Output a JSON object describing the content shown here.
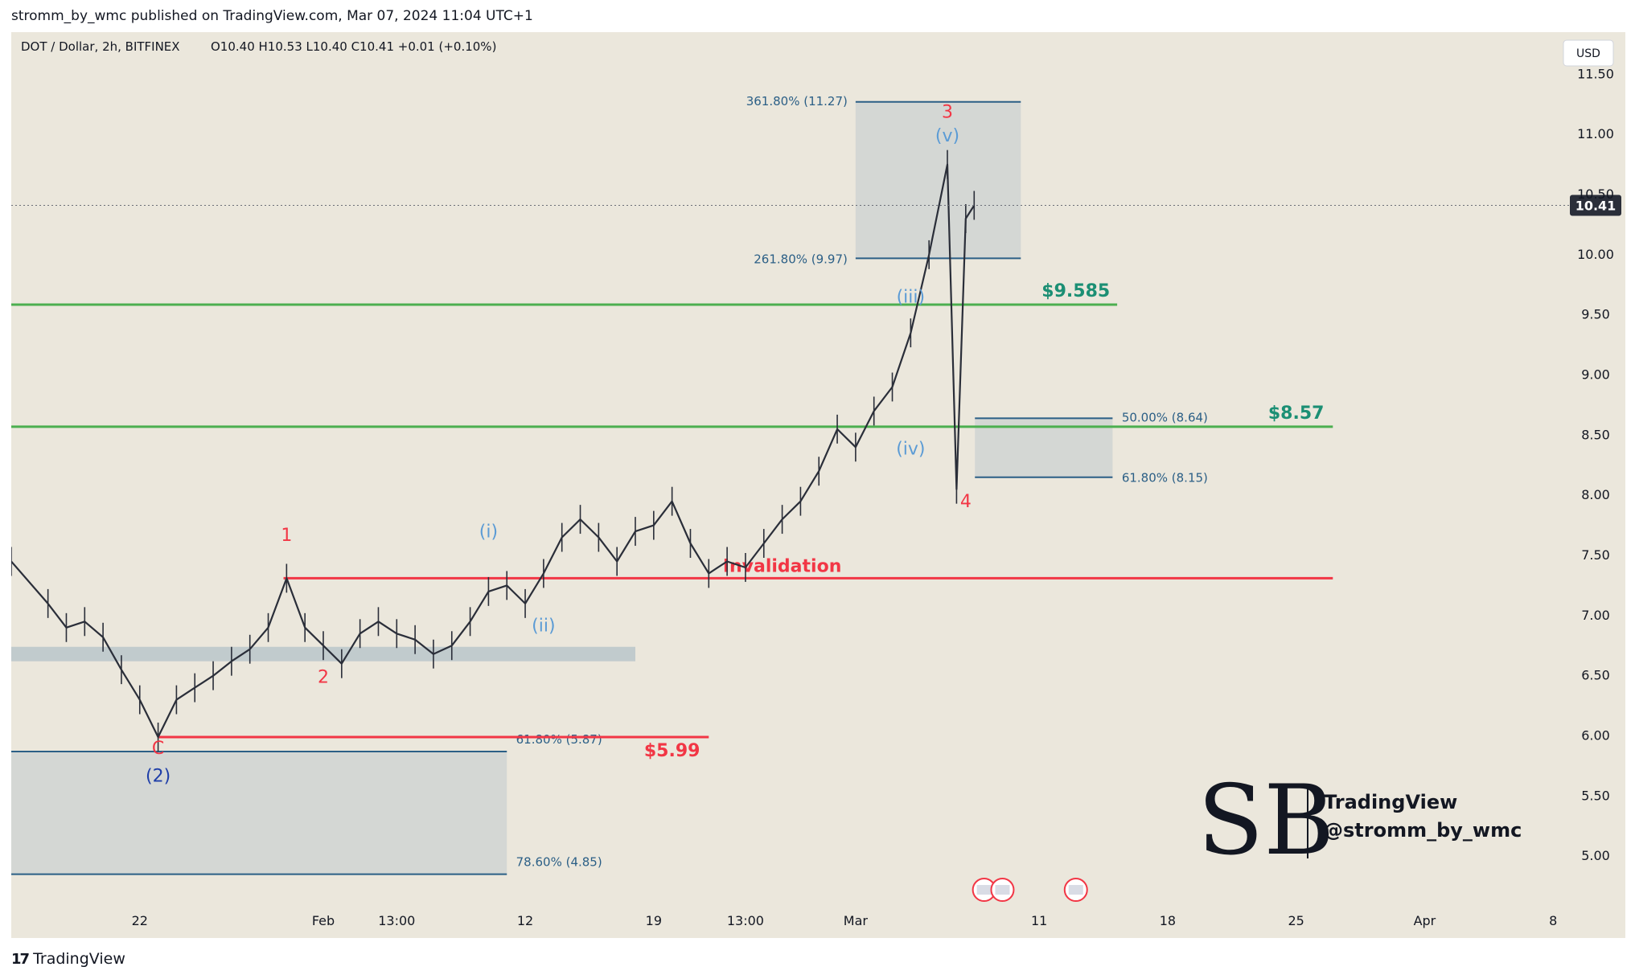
{
  "header": {
    "published_by": "stromm_by_wmc published on TradingView.com, Mar 07, 2024 11:04 UTC+1"
  },
  "footer": {
    "brand": "TradingView"
  },
  "chart_data": {
    "type": "candlestick",
    "symbol": "DOT / Dollar, 2h, BITFINEX",
    "ohlc_text": "O10.40  H10.53  L10.40  C10.41  +0.01 (+0.10%)",
    "currency": "USD",
    "last_price": "10.41",
    "y_axis": {
      "ticks": [
        5.0,
        5.5,
        6.0,
        6.5,
        7.0,
        7.5,
        8.0,
        8.5,
        9.0,
        9.5,
        10.0,
        10.5,
        11.0,
        11.5
      ],
      "tick_labels": [
        "5.00",
        "5.50",
        "6.00",
        "6.50",
        "7.00",
        "7.50",
        "8.00",
        "8.50",
        "9.00",
        "9.50",
        "10.00",
        "10.50",
        "11.00",
        "11.50"
      ],
      "range": [
        4.6,
        11.85
      ]
    },
    "x_axis": {
      "tick_labels": [
        "22",
        "Feb",
        "13:00",
        "12",
        "19",
        "13:00",
        "Mar",
        "11",
        "18",
        "25",
        "Apr",
        "8"
      ],
      "range": [
        "2024-01-15",
        "2024-04-09"
      ]
    },
    "price_path": [
      [
        "2024-01-15",
        7.45
      ],
      [
        "2024-01-17",
        7.1
      ],
      [
        "2024-01-18",
        6.9
      ],
      [
        "2024-01-19",
        6.95
      ],
      [
        "2024-01-20",
        6.82
      ],
      [
        "2024-01-21",
        6.55
      ],
      [
        "2024-01-22",
        6.3
      ],
      [
        "2024-01-23",
        5.99
      ],
      [
        "2024-01-24",
        6.3
      ],
      [
        "2024-01-25",
        6.4
      ],
      [
        "2024-01-26",
        6.5
      ],
      [
        "2024-01-27",
        6.62
      ],
      [
        "2024-01-28",
        6.72
      ],
      [
        "2024-01-29",
        6.9
      ],
      [
        "2024-01-30",
        7.31
      ],
      [
        "2024-01-31",
        6.9
      ],
      [
        "2024-02-01",
        6.75
      ],
      [
        "2024-02-02",
        6.6
      ],
      [
        "2024-02-03",
        6.85
      ],
      [
        "2024-02-04",
        6.95
      ],
      [
        "2024-02-05",
        6.85
      ],
      [
        "2024-02-06",
        6.8
      ],
      [
        "2024-02-07",
        6.68
      ],
      [
        "2024-02-08",
        6.75
      ],
      [
        "2024-02-09",
        6.95
      ],
      [
        "2024-02-10",
        7.2
      ],
      [
        "2024-02-11",
        7.25
      ],
      [
        "2024-02-12",
        7.1
      ],
      [
        "2024-02-13",
        7.35
      ],
      [
        "2024-02-14",
        7.65
      ],
      [
        "2024-02-15",
        7.8
      ],
      [
        "2024-02-16",
        7.65
      ],
      [
        "2024-02-17",
        7.45
      ],
      [
        "2024-02-18",
        7.7
      ],
      [
        "2024-02-19",
        7.75
      ],
      [
        "2024-02-20",
        7.95
      ],
      [
        "2024-02-21",
        7.6
      ],
      [
        "2024-02-22",
        7.35
      ],
      [
        "2024-02-23",
        7.45
      ],
      [
        "2024-02-24",
        7.4
      ],
      [
        "2024-02-25",
        7.6
      ],
      [
        "2024-02-26",
        7.8
      ],
      [
        "2024-02-27",
        7.95
      ],
      [
        "2024-02-28",
        8.2
      ],
      [
        "2024-02-29",
        8.55
      ],
      [
        "2024-03-01",
        8.4
      ],
      [
        "2024-03-02",
        8.7
      ],
      [
        "2024-03-03",
        8.9
      ],
      [
        "2024-03-04",
        9.35
      ],
      [
        "2024-03-05",
        10.0
      ],
      [
        "2024-03-06",
        10.75
      ],
      [
        "2024-03-06T12",
        8.05
      ],
      [
        "2024-03-07",
        10.3
      ],
      [
        "2024-03-07T11",
        10.41
      ]
    ],
    "horizontal_levels": [
      {
        "value": 9.585,
        "label": "$9.585",
        "color": "#4caf50",
        "label_color": "#1b8f74"
      },
      {
        "value": 8.57,
        "label": "$8.57",
        "color": "#4caf50",
        "label_color": "#1b8f74"
      },
      {
        "value": 7.31,
        "label": "Invalidation",
        "color": "#f23645",
        "label_color": "#f23645"
      },
      {
        "value": 5.99,
        "label": "$5.99",
        "color": "#f23645",
        "label_color": "#f23645"
      }
    ],
    "fib_zones": [
      {
        "top_label": "361.80% (11.27)",
        "top": 11.27,
        "bottom_label": "261.80% (9.97)",
        "bottom": 9.97
      },
      {
        "top_label": "50.00% (8.64)",
        "top": 8.64,
        "bottom_label": "61.80% (8.15)",
        "bottom": 8.15
      },
      {
        "top_label": "61.80% (5.87)",
        "top": 5.87,
        "bottom_label": "78.60% (4.85)",
        "bottom": 4.85
      }
    ],
    "wave_labels": [
      {
        "text": "1",
        "color": "#f23645"
      },
      {
        "text": "2",
        "color": "#f23645"
      },
      {
        "text": "3",
        "color": "#f23645"
      },
      {
        "text": "4",
        "color": "#f23645"
      },
      {
        "text": "C",
        "color": "#f23645"
      },
      {
        "text": "(2)",
        "color": "#1e3ea8"
      },
      {
        "text": "(i)",
        "color": "#5b9bd5"
      },
      {
        "text": "(ii)",
        "color": "#5b9bd5"
      },
      {
        "text": "(iii)",
        "color": "#5b9bd5"
      },
      {
        "text": "(iv)",
        "color": "#5b9bd5"
      },
      {
        "text": "(v)",
        "color": "#5b9bd5"
      }
    ],
    "grid": false
  },
  "watermark": {
    "line1": "TradingView",
    "line2": "@stromm_by_wmc"
  }
}
